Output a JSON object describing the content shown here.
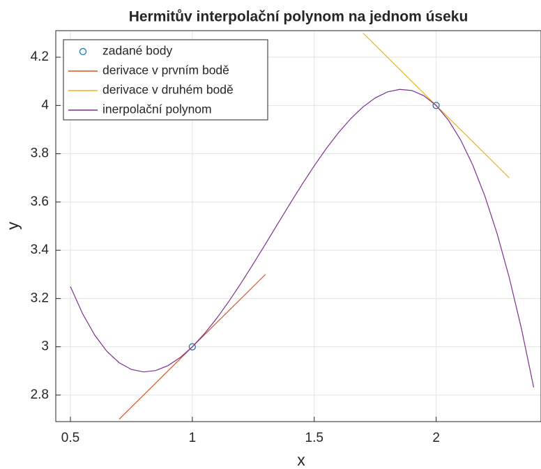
{
  "chart_data": {
    "type": "line",
    "title": "Hermitův interpolační polynom na jednom úseku",
    "xlabel": "x",
    "ylabel": "y",
    "xlim": [
      0.44,
      2.43
    ],
    "ylim": [
      2.69,
      4.31
    ],
    "xticks": [
      0.5,
      1,
      1.5,
      2
    ],
    "yticks": [
      2.8,
      3,
      3.2,
      3.4,
      3.6,
      3.8,
      4,
      4.2
    ],
    "grid": true,
    "legend": "upper left",
    "series": [
      {
        "name": "zadané body",
        "color": "#0072bd",
        "style": "markers",
        "x": [
          1,
          2
        ],
        "values": [
          3,
          4
        ]
      },
      {
        "name": "derivace v prvním bodě",
        "color": "#d95319",
        "style": "line",
        "x": [
          0.7,
          1.3
        ],
        "values": [
          2.7,
          3.3
        ]
      },
      {
        "name": "derivace v druhém bodě",
        "color": "#edb120",
        "style": "line",
        "x": [
          1.7,
          2.3
        ],
        "values": [
          4.3,
          3.7
        ]
      },
      {
        "name": "inerpolační polynom",
        "color": "#7e2f8e",
        "style": "line",
        "x": [
          0.5,
          0.55,
          0.6,
          0.65,
          0.7,
          0.75,
          0.8,
          0.85,
          0.9,
          0.95,
          1,
          1.05,
          1.1,
          1.15,
          1.2,
          1.25,
          1.3,
          1.35,
          1.4,
          1.45,
          1.5,
          1.55,
          1.6,
          1.65,
          1.7,
          1.75,
          1.8,
          1.85,
          1.9,
          1.95,
          2,
          2.05,
          2.1,
          2.15,
          2.2,
          2.25,
          2.3,
          2.35,
          2.4
        ],
        "values": [
          3.25,
          3.13725,
          3.048,
          2.98075,
          2.934,
          2.90625,
          2.896,
          2.90175,
          2.922,
          2.95525,
          3,
          3.05475,
          3.118,
          3.18825,
          3.264,
          3.34375,
          3.426,
          3.50925,
          3.592,
          3.67275,
          3.75,
          3.82225,
          3.888,
          3.94575,
          3.994,
          4.03125,
          4.056,
          4.06675,
          4.062,
          4.04025,
          4,
          3.93975,
          3.858,
          3.75325,
          3.624,
          3.46875,
          3.286,
          3.07425,
          2.832
        ]
      }
    ]
  }
}
